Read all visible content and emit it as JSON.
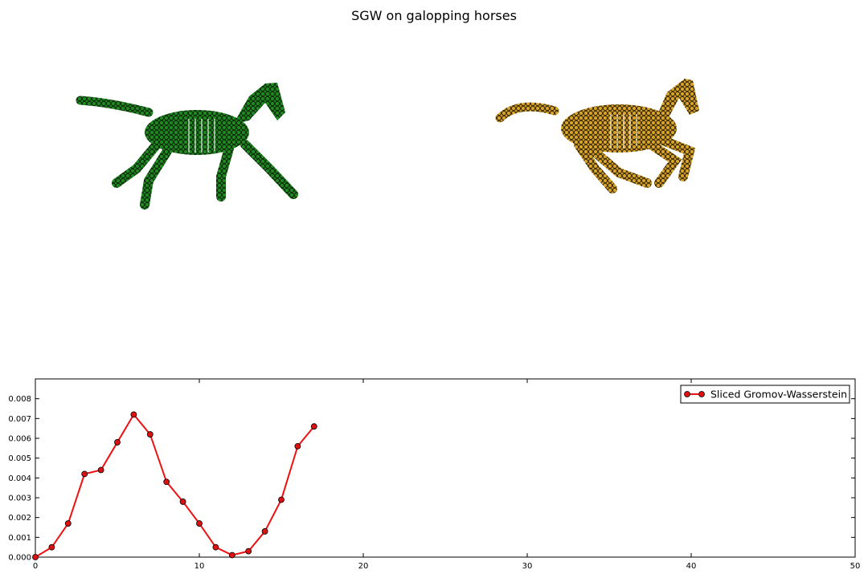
{
  "figure": {
    "title": "SGW on galopping horses"
  },
  "colors": {
    "line": "#ee1111",
    "marker": "#dd1111",
    "horse_left": "#1f8a1f",
    "horse_right": "#d9a427"
  },
  "panels": [
    {
      "type": "scatter-3d-mesh",
      "subject": "galloping horse (left)",
      "marker_color": "#1f8a1f"
    },
    {
      "type": "scatter-3d-mesh",
      "subject": "galloping horse (right)",
      "marker_color": "#d9a427"
    }
  ],
  "chart_data": {
    "type": "line",
    "title": "",
    "xlabel": "",
    "ylabel": "",
    "xlim": [
      0,
      50
    ],
    "ylim": [
      0,
      0.009
    ],
    "xticks": [
      0,
      10,
      20,
      30,
      40,
      50
    ],
    "yticks": [
      0.0,
      0.001,
      0.002,
      0.003,
      0.004,
      0.005,
      0.006,
      0.007,
      0.008
    ],
    "ytick_labels": [
      "0.000",
      "0.001",
      "0.002",
      "0.003",
      "0.004",
      "0.005",
      "0.006",
      "0.007",
      "0.008"
    ],
    "grid": false,
    "legend_position": "top-right",
    "series": [
      {
        "name": "Sliced Gromov-Wasserstein",
        "color": "#ee1111",
        "marker": "circle",
        "x": [
          0,
          1,
          2,
          3,
          4,
          5,
          6,
          7,
          8,
          9,
          10,
          11,
          12,
          13,
          14,
          15,
          16,
          17
        ],
        "y": [
          0.0,
          0.0005,
          0.0017,
          0.0042,
          0.0044,
          0.0058,
          0.0072,
          0.0062,
          0.0038,
          0.0028,
          0.0017,
          0.0005,
          0.0001,
          0.0003,
          0.0013,
          0.0029,
          0.0056,
          0.0066
        ]
      }
    ]
  }
}
